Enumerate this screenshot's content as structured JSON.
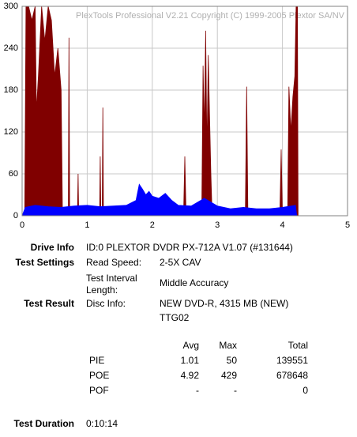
{
  "chart_data": {
    "type": "area",
    "title": "PlexTools Professional V2.21 Copyright (C) 1999-2005 Plextor SA/NV",
    "xlim": [
      0,
      5
    ],
    "xticks": [
      0,
      1,
      2,
      3,
      4,
      5
    ],
    "ylim": [
      0,
      300
    ],
    "yticks": [
      0,
      60,
      120,
      180,
      240,
      300
    ],
    "grid": true,
    "series": [
      {
        "color": "#800000",
        "x": [
          0.04,
          0.06,
          0.1,
          0.15,
          0.2,
          0.22,
          0.25,
          0.3,
          0.35,
          0.4,
          0.45,
          0.5,
          0.55,
          0.6,
          0.62,
          0.71,
          0.72,
          0.73,
          0.85,
          0.86,
          0.87,
          1.19,
          1.2,
          1.21,
          1.23,
          1.24,
          1.25,
          2.48,
          2.5,
          2.52,
          2.76,
          2.78,
          2.8,
          2.82,
          2.84,
          2.86,
          2.88,
          2.9,
          2.92,
          3.43,
          3.45,
          3.47,
          3.96,
          3.98,
          4.0,
          4.08,
          4.1,
          4.13,
          4.16,
          4.19,
          4.21,
          4.23,
          4.24
        ],
        "values": [
          0,
          300,
          300,
          280,
          300,
          150,
          200,
          300,
          250,
          300,
          280,
          200,
          240,
          180,
          0,
          0,
          255,
          0,
          0,
          60,
          0,
          0,
          85,
          0,
          0,
          155,
          0,
          0,
          85,
          0,
          0,
          215,
          120,
          265,
          90,
          230,
          145,
          60,
          0,
          0,
          185,
          0,
          0,
          95,
          0,
          0,
          185,
          120,
          170,
          200,
          300,
          300,
          0
        ]
      },
      {
        "color": "#0000ff",
        "x": [
          0,
          0.05,
          0.2,
          0.4,
          0.6,
          0.8,
          1.0,
          1.2,
          1.4,
          1.6,
          1.75,
          1.8,
          1.85,
          1.9,
          1.95,
          2.0,
          2.1,
          2.2,
          2.3,
          2.4,
          2.6,
          2.8,
          3.0,
          3.2,
          3.4,
          3.6,
          3.8,
          4.0,
          4.2,
          4.22
        ],
        "values": [
          0,
          12,
          15,
          13,
          12,
          14,
          15,
          13,
          14,
          15,
          22,
          45,
          38,
          30,
          35,
          28,
          25,
          32,
          22,
          15,
          14,
          25,
          14,
          10,
          12,
          10,
          10,
          12,
          15,
          0
        ]
      }
    ]
  },
  "info": {
    "drive": {
      "label": "Drive Info",
      "value": "ID:0 PLEXTOR DVDR PX-712A V1.07 (#131644)"
    },
    "settings": {
      "label": "Test Settings",
      "read_speed_label": "Read Speed:",
      "read_speed": "2-5X CAV",
      "interval_label": "Test Interval Length:",
      "interval": "Middle Accuracy"
    },
    "result": {
      "label": "Test Result",
      "disc_label": "Disc Info:",
      "disc_lines": [
        "NEW DVD-R, 4315 MB (NEW)",
        "TTG02"
      ]
    },
    "table": {
      "headers": [
        "Avg",
        "Max",
        "Total"
      ],
      "rows": [
        [
          "PIE",
          1.01,
          50,
          139551
        ],
        [
          "POE",
          4.92,
          429,
          678648
        ],
        [
          "POF",
          "-",
          "-",
          0
        ]
      ]
    },
    "duration": {
      "label": "Test Duration",
      "value": "0:10:14"
    }
  }
}
